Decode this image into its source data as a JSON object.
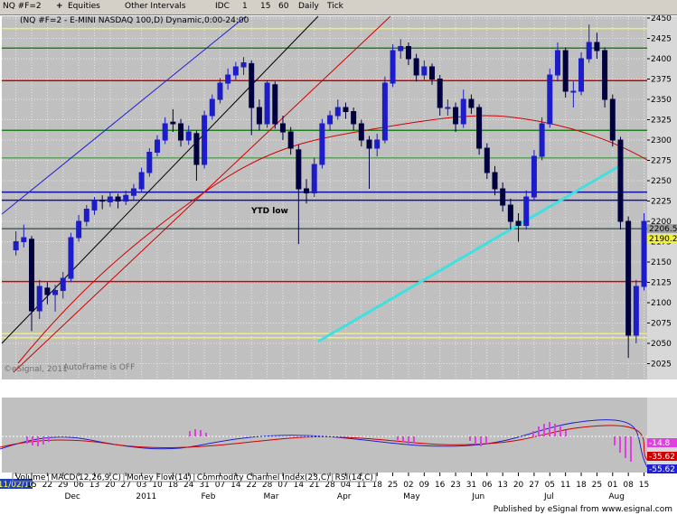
{
  "toolbar": {
    "symbol": "NQ #F=2",
    "items": [
      "Equities",
      "Other Intervals",
      "IDC",
      "1",
      "15",
      "60",
      "Daily",
      "Tick"
    ]
  },
  "chart_data": {
    "type": "candlestick",
    "title": "(NQ #F=2 - E-MINI NASDAQ 100,D) Dynamic,0:00-24:00",
    "ohlc": [
      [
        2165,
        2188,
        2158,
        2175
      ],
      [
        2175,
        2196,
        2168,
        2180
      ],
      [
        2178,
        2182,
        2065,
        2090
      ],
      [
        2090,
        2128,
        2080,
        2120
      ],
      [
        2118,
        2125,
        2098,
        2110
      ],
      [
        2110,
        2122,
        2089,
        2115
      ],
      [
        2115,
        2138,
        2105,
        2130
      ],
      [
        2130,
        2186,
        2125,
        2180
      ],
      [
        2180,
        2208,
        2175,
        2200
      ],
      [
        2200,
        2220,
        2194,
        2215
      ],
      [
        2214,
        2230,
        2208,
        2225
      ],
      [
        2226,
        2232,
        2215,
        2225
      ],
      [
        2224,
        2236,
        2218,
        2230
      ],
      [
        2230,
        2234,
        2216,
        2225
      ],
      [
        2225,
        2238,
        2220,
        2232
      ],
      [
        2232,
        2246,
        2226,
        2240
      ],
      [
        2240,
        2266,
        2236,
        2260
      ],
      [
        2260,
        2290,
        2255,
        2285
      ],
      [
        2285,
        2306,
        2280,
        2300
      ],
      [
        2300,
        2328,
        2295,
        2320
      ],
      [
        2322,
        2338,
        2310,
        2320
      ],
      [
        2320,
        2326,
        2292,
        2300
      ],
      [
        2300,
        2318,
        2294,
        2310
      ],
      [
        2308,
        2312,
        2250,
        2270
      ],
      [
        2270,
        2336,
        2265,
        2330
      ],
      [
        2330,
        2356,
        2325,
        2350
      ],
      [
        2350,
        2376,
        2345,
        2370
      ],
      [
        2370,
        2388,
        2362,
        2380
      ],
      [
        2380,
        2396,
        2374,
        2390
      ],
      [
        2390,
        2402,
        2380,
        2395
      ],
      [
        2394,
        2398,
        2306,
        2340
      ],
      [
        2340,
        2350,
        2312,
        2320
      ],
      [
        2320,
        2374,
        2315,
        2370
      ],
      [
        2368,
        2372,
        2314,
        2320
      ],
      [
        2320,
        2330,
        2300,
        2310
      ],
      [
        2310,
        2316,
        2282,
        2290
      ],
      [
        2288,
        2294,
        2172,
        2240
      ],
      [
        2240,
        2252,
        2222,
        2235
      ],
      [
        2235,
        2278,
        2230,
        2270
      ],
      [
        2270,
        2326,
        2265,
        2320
      ],
      [
        2320,
        2336,
        2312,
        2330
      ],
      [
        2330,
        2350,
        2325,
        2340
      ],
      [
        2340,
        2346,
        2326,
        2335
      ],
      [
        2335,
        2340,
        2312,
        2320
      ],
      [
        2320,
        2325,
        2292,
        2300
      ],
      [
        2300,
        2305,
        2240,
        2290
      ],
      [
        2290,
        2308,
        2280,
        2300
      ],
      [
        2300,
        2378,
        2296,
        2370
      ],
      [
        2370,
        2418,
        2365,
        2410
      ],
      [
        2410,
        2424,
        2400,
        2415
      ],
      [
        2415,
        2420,
        2392,
        2400
      ],
      [
        2400,
        2406,
        2372,
        2380
      ],
      [
        2380,
        2398,
        2374,
        2390
      ],
      [
        2390,
        2394,
        2368,
        2375
      ],
      [
        2375,
        2380,
        2330,
        2340
      ],
      [
        2340,
        2350,
        2330,
        2340
      ],
      [
        2340,
        2346,
        2310,
        2320
      ],
      [
        2320,
        2362,
        2315,
        2350
      ],
      [
        2350,
        2356,
        2332,
        2340
      ],
      [
        2340,
        2344,
        2282,
        2290
      ],
      [
        2290,
        2296,
        2252,
        2260
      ],
      [
        2260,
        2268,
        2232,
        2240
      ],
      [
        2240,
        2248,
        2212,
        2220
      ],
      [
        2220,
        2228,
        2190,
        2200
      ],
      [
        2200,
        2210,
        2175,
        2195
      ],
      [
        2195,
        2238,
        2190,
        2230
      ],
      [
        2230,
        2288,
        2225,
        2280
      ],
      [
        2280,
        2328,
        2275,
        2320
      ],
      [
        2320,
        2388,
        2315,
        2380
      ],
      [
        2380,
        2420,
        2372,
        2410
      ],
      [
        2410,
        2414,
        2352,
        2360
      ],
      [
        2360,
        2372,
        2340,
        2360
      ],
      [
        2360,
        2408,
        2355,
        2400
      ],
      [
        2400,
        2442,
        2395,
        2420
      ],
      [
        2420,
        2432,
        2400,
        2410
      ],
      [
        2410,
        2414,
        2340,
        2350
      ],
      [
        2350,
        2356,
        2292,
        2300
      ],
      [
        2300,
        2304,
        2190,
        2200
      ],
      [
        2200,
        2206,
        2032,
        2060
      ],
      [
        2060,
        2128,
        2050,
        2120
      ],
      [
        2120,
        2210,
        2115,
        2200
      ]
    ],
    "up_color": "#1c1cc8",
    "down_color": "#000040",
    "xlim": [
      -1.8,
      80.4
    ],
    "ylim": [
      2005.6,
      2452.2
    ],
    "yticks": [
      2025,
      2050,
      2075,
      2100,
      2125,
      2150,
      2175,
      2200,
      2225,
      2250,
      2275,
      2300,
      2325,
      2350,
      2375,
      2400,
      2425,
      2450
    ],
    "xticks": [
      {
        "value": 0,
        "label": "11/02/10"
      },
      {
        "value": 2,
        "label": "15"
      },
      {
        "value": 4,
        "label": "22"
      },
      {
        "value": 6,
        "label": "29"
      },
      {
        "value": 8,
        "label": "06"
      },
      {
        "value": 10,
        "label": "13"
      },
      {
        "value": 12,
        "label": "20"
      },
      {
        "value": 14,
        "label": "27"
      },
      {
        "value": 16,
        "label": "03"
      },
      {
        "value": 18,
        "label": "10"
      },
      {
        "value": 20,
        "label": "18"
      },
      {
        "value": 22,
        "label": "24"
      },
      {
        "value": 24,
        "label": "31"
      },
      {
        "value": 26,
        "label": "07"
      },
      {
        "value": 28,
        "label": "14"
      },
      {
        "value": 30,
        "label": "22"
      },
      {
        "value": 32,
        "label": "28"
      },
      {
        "value": 34,
        "label": "07"
      },
      {
        "value": 36,
        "label": "14"
      },
      {
        "value": 38,
        "label": "21"
      },
      {
        "value": 40,
        "label": "28"
      },
      {
        "value": 42,
        "label": "04"
      },
      {
        "value": 44,
        "label": "11"
      },
      {
        "value": 46,
        "label": "18"
      },
      {
        "value": 48,
        "label": "25"
      },
      {
        "value": 50,
        "label": "02"
      },
      {
        "value": 52,
        "label": "09"
      },
      {
        "value": 54,
        "label": "16"
      },
      {
        "value": 56,
        "label": "23"
      },
      {
        "value": 58,
        "label": "31"
      },
      {
        "value": 60,
        "label": "06"
      },
      {
        "value": 62,
        "label": "13"
      },
      {
        "value": 64,
        "label": "20"
      },
      {
        "value": 66,
        "label": "27"
      },
      {
        "value": 68,
        "label": "05"
      },
      {
        "value": 70,
        "label": "11"
      },
      {
        "value": 72,
        "label": "18"
      },
      {
        "value": 74,
        "label": "25"
      },
      {
        "value": 76,
        "label": "01"
      },
      {
        "value": 78,
        "label": "08"
      },
      {
        "value": 80,
        "label": "15"
      }
    ],
    "month_ticks": [
      {
        "value": 7.2,
        "label": "Dec"
      },
      {
        "value": 16.6,
        "label": "2011"
      },
      {
        "value": 24.5,
        "label": "Feb"
      },
      {
        "value": 32.5,
        "label": "Mar"
      },
      {
        "value": 41.8,
        "label": "Apr"
      },
      {
        "value": 50.4,
        "label": "May"
      },
      {
        "value": 58.9,
        "label": "Jun"
      },
      {
        "value": 67.9,
        "label": "Jul"
      },
      {
        "value": 76.5,
        "label": "Aug"
      }
    ],
    "grid": true,
    "levels": [
      {
        "value": 2437,
        "color": "#f0f060"
      },
      {
        "value": 2413,
        "color": "#208020"
      },
      {
        "value": 2373,
        "color": "#d00000"
      },
      {
        "value": 2312,
        "color": "#208020"
      },
      {
        "value": 2278,
        "color": "#60a060"
      },
      {
        "value": 2236,
        "color": "#1010a0"
      },
      {
        "value": 2226,
        "color": "#1010a0"
      },
      {
        "value": 2191,
        "color": "#406060"
      },
      {
        "value": 2126,
        "color": "#d00000"
      },
      {
        "value": 2062,
        "color": "#f0f060"
      },
      {
        "value": 2057,
        "color": "#f0f060"
      }
    ],
    "annotations": [
      "YTD low",
      "AutoFrame is OFF",
      "©eSignal, 2011"
    ],
    "price_labels": [
      "2206.50",
      "2190.25"
    ],
    "indicator_labels": [
      "-14.8",
      "-35.62",
      "-55.62"
    ]
  },
  "indicator_tabs": [
    "Volume",
    "MACD(12,26,9,C)",
    "Money Flow(14)",
    "Commodity Channel Index(23,C)",
    "RSI(14,C)"
  ],
  "footer": "Published by eSignal from www.esignal.com"
}
